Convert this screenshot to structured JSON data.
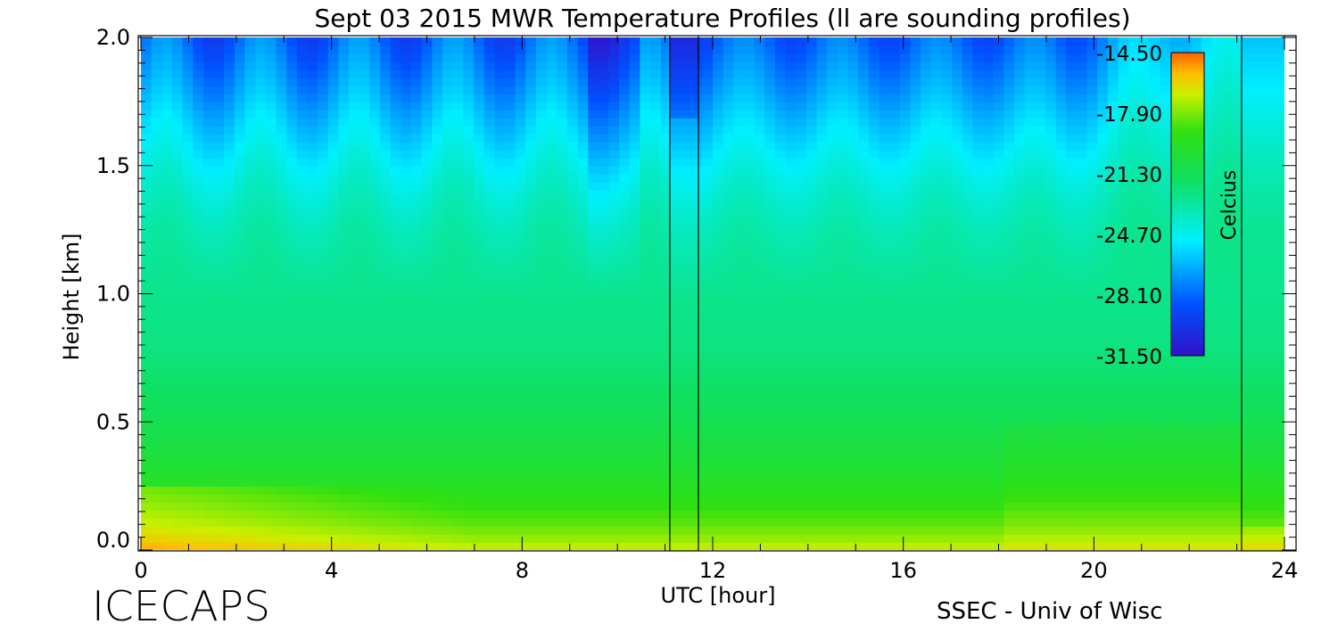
{
  "chart_data": {
    "type": "heatmap",
    "title": "Sept 03 2015 MWR Temperature Profiles (ll are sounding profiles)",
    "xlabel": "UTC [hour]",
    "ylabel": "Height [km]",
    "xlim": [
      0,
      24
    ],
    "ylim": [
      0,
      2.0
    ],
    "x_ticks": [
      "0",
      "4",
      "8",
      "12",
      "16",
      "20",
      "24"
    ],
    "y_ticks": [
      "0.0",
      "0.5",
      "1.0",
      "1.5",
      "2.0"
    ],
    "x_tick_values": [
      0,
      4,
      8,
      12,
      16,
      20,
      24
    ],
    "y_tick_values": [
      0,
      0.5,
      1.0,
      1.5,
      2.0
    ],
    "colorbar": {
      "label": "Celcius",
      "tick_labels": [
        "-14.50",
        "-17.90",
        "-21.30",
        "-24.70",
        "-28.10",
        "-31.50"
      ],
      "range": [
        -31.5,
        -14.5
      ]
    },
    "sounding_profiles_utc": [
      11.1,
      11.7,
      23.1
    ],
    "height_km": [
      0.0,
      0.05,
      0.1,
      0.2,
      0.3,
      0.5,
      0.75,
      1.0,
      1.25,
      1.4,
      1.5,
      1.6,
      1.7,
      1.8,
      1.9,
      2.0
    ],
    "temperature_profile_c": [
      -16.8,
      -17.6,
      -18.3,
      -19.2,
      -20.0,
      -21.2,
      -22.2,
      -22.6,
      -23.3,
      -24.0,
      -24.6,
      -25.3,
      -26.0,
      -26.8,
      -27.5,
      -28.2
    ],
    "annotations": {
      "left_footer": "ICECAPS",
      "right_footer": "SSEC - Univ of Wisc"
    }
  }
}
